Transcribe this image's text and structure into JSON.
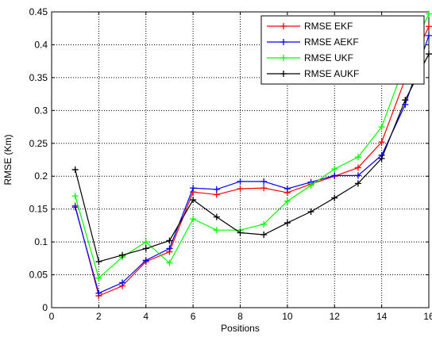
{
  "chart_data": {
    "type": "line",
    "title": "",
    "xlabel": "Positions",
    "ylabel": "RMSE (Km)",
    "xlim": [
      0,
      16
    ],
    "ylim": [
      0,
      0.45
    ],
    "xticks": [
      0,
      2,
      4,
      6,
      8,
      10,
      12,
      14,
      16
    ],
    "xtick_labels": [
      "0",
      "2",
      "4",
      "6",
      "8",
      "10",
      "12",
      "14",
      "16"
    ],
    "yticks": [
      0,
      0.05,
      0.1,
      0.15,
      0.2,
      0.25,
      0.3,
      0.35,
      0.4,
      0.45
    ],
    "ytick_labels": [
      "0",
      "0.05",
      "0.1",
      "0.15",
      "0.2",
      "0.25",
      "0.3",
      "0.35",
      "0.4",
      "0.45"
    ],
    "grid": true,
    "legend_position": "top-right",
    "x": [
      1,
      2,
      3,
      4,
      5,
      6,
      7,
      8,
      9,
      10,
      11,
      12,
      13,
      14,
      15,
      16
    ],
    "series": [
      {
        "name": "RMSE EKF",
        "color": "#ff0000",
        "values": [
          0.155,
          0.018,
          0.033,
          0.07,
          0.085,
          0.176,
          0.172,
          0.181,
          0.182,
          0.175,
          0.188,
          0.2,
          0.213,
          0.252,
          0.348,
          0.428
        ]
      },
      {
        "name": "RMSE AEKF",
        "color": "#0000ff",
        "values": [
          0.153,
          0.022,
          0.038,
          0.072,
          0.09,
          0.182,
          0.18,
          0.192,
          0.192,
          0.181,
          0.191,
          0.201,
          0.201,
          0.232,
          0.309,
          0.414
        ]
      },
      {
        "name": "RMSE UKF",
        "color": "#00ff00",
        "values": [
          0.17,
          0.045,
          0.077,
          0.1,
          0.068,
          0.135,
          0.118,
          0.118,
          0.127,
          0.162,
          0.186,
          0.211,
          0.229,
          0.275,
          0.372,
          0.447
        ]
      },
      {
        "name": "RMSE AUKF",
        "color": "#000000",
        "values": [
          0.21,
          0.07,
          0.08,
          0.09,
          0.102,
          0.164,
          0.138,
          0.114,
          0.111,
          0.129,
          0.146,
          0.167,
          0.189,
          0.227,
          0.316,
          0.386
        ]
      }
    ]
  }
}
